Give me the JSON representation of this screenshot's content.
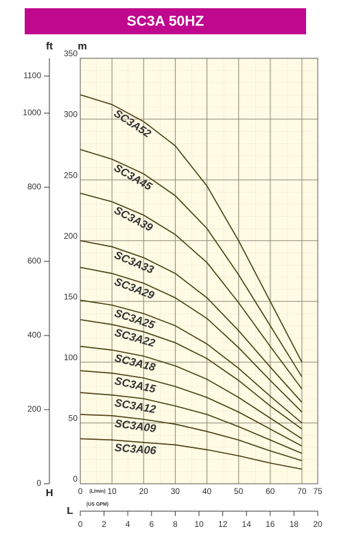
{
  "chart_data": {
    "type": "line",
    "title": "SC3A 50HZ",
    "y_unit": "m",
    "y2_unit": "ft",
    "y_axis_letter": "H",
    "x2_axis_letter": "L",
    "x_unit": "(L/min)",
    "x2_unit": "(US GPM)",
    "x": [
      0,
      10,
      20,
      30,
      40,
      50,
      60,
      70
    ],
    "xlim": [
      0,
      75
    ],
    "xticks": [
      0,
      10,
      20,
      30,
      40,
      50,
      60,
      70,
      75
    ],
    "ylim": [
      0,
      350
    ],
    "yticks": [
      0,
      50,
      100,
      150,
      200,
      250,
      300,
      350
    ],
    "y2lim": [
      0,
      1148
    ],
    "y2ticks": [
      0,
      200,
      400,
      600,
      800,
      1000,
      1100
    ],
    "x2lim": [
      0,
      20
    ],
    "x2ticks": [
      0,
      2,
      4,
      6,
      8,
      10,
      12,
      14,
      16,
      18,
      20
    ],
    "grid": true,
    "line_color": "#4a3f12",
    "label_color": "#23742e",
    "series": [
      {
        "name": "SC3A52",
        "values": [
          320,
          312,
          298,
          278,
          245,
          200,
          150,
          100
        ]
      },
      {
        "name": "SC3A45",
        "values": [
          275,
          267,
          255,
          237,
          210,
          172,
          130,
          88
        ]
      },
      {
        "name": "SC3A39",
        "values": [
          239,
          232,
          221,
          205,
          182,
          149,
          113,
          78
        ]
      },
      {
        "name": "SC3A33",
        "values": [
          200,
          195,
          186,
          173,
          153,
          126,
          96,
          67
        ]
      },
      {
        "name": "SC3A29",
        "values": [
          178,
          173,
          165,
          153,
          136,
          112,
          85,
          59
        ]
      },
      {
        "name": "SC3A25",
        "values": [
          151,
          147,
          140,
          130,
          115,
          95,
          72,
          50
        ]
      },
      {
        "name": "SC3A22",
        "values": [
          135,
          131,
          125,
          116,
          103,
          85,
          64,
          45
        ]
      },
      {
        "name": "SC3A18",
        "values": [
          113,
          110,
          105,
          97,
          86,
          71,
          54,
          37
        ]
      },
      {
        "name": "SC3A15",
        "values": [
          93,
          91,
          87,
          80,
          71,
          59,
          45,
          31
        ]
      },
      {
        "name": "SC3A12",
        "values": [
          75,
          73,
          70,
          64,
          57,
          47,
          36,
          25
        ]
      },
      {
        "name": "SC3A09",
        "values": [
          57,
          56,
          53,
          49,
          43,
          36,
          27,
          19
        ]
      },
      {
        "name": "SC3A06",
        "values": [
          37,
          36,
          34,
          32,
          28,
          23,
          17,
          12
        ]
      }
    ]
  }
}
